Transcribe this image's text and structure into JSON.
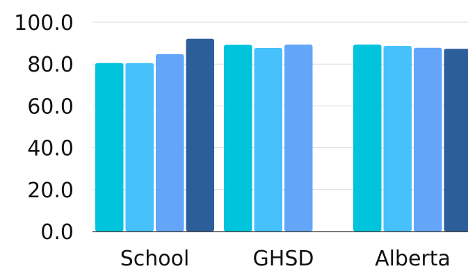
{
  "chart_data": {
    "type": "bar",
    "title": "",
    "xlabel": "",
    "ylabel": "",
    "categories": [
      "School",
      "GHSD",
      "Alberta"
    ],
    "ylim": [
      0,
      100
    ],
    "yticks": [
      "0.0",
      "20.0",
      "40.0",
      "60.0",
      "80.0",
      "100.0"
    ],
    "ytick_values": [
      0,
      20,
      40,
      60,
      80,
      100
    ],
    "grid": true,
    "legend": "none",
    "series": [
      {
        "color": "#00c4dc",
        "values": [
          80.5,
          89.2,
          89.3
        ]
      },
      {
        "color": "#46c1fb",
        "values": [
          80.5,
          87.7,
          88.7
        ]
      },
      {
        "color": "#63a5f9",
        "values": [
          84.7,
          89.3,
          87.8
        ]
      },
      {
        "color": "#2c5f99",
        "values": [
          92.1,
          null,
          87.3
        ]
      }
    ]
  }
}
